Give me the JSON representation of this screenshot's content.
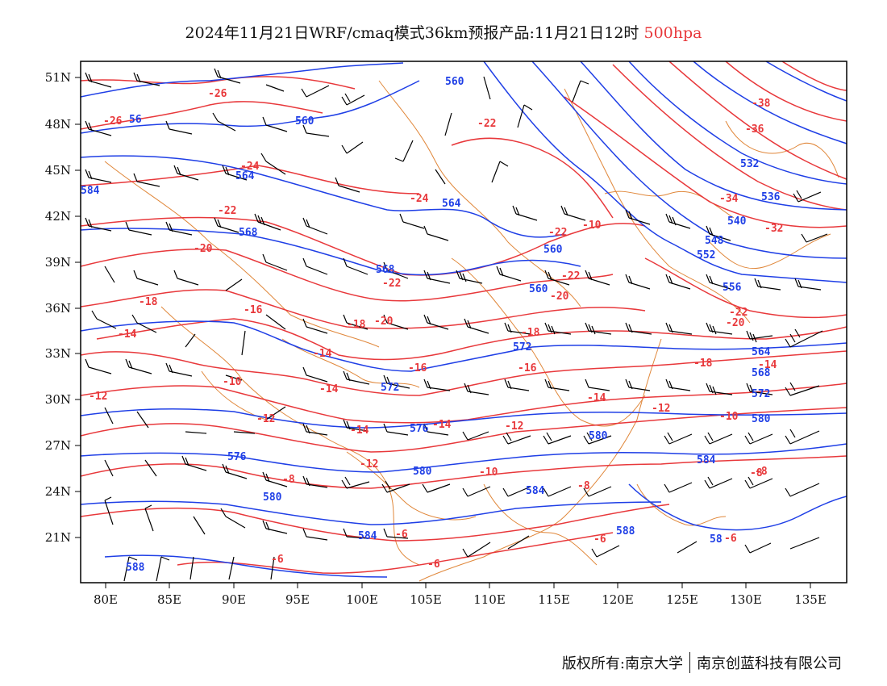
{
  "title": {
    "text": "2024年11月21日WRF/cmaq模式36km预报产品:11月21日12时",
    "level": "500hpa",
    "level_color": "#e8383b"
  },
  "colors": {
    "temperature_contour": "#e8383b",
    "height_contour": "#1f3fe6",
    "coastline_border": "#e0873a",
    "wind_barb": "#000000"
  },
  "axes": {
    "lat_labels": [
      "51N",
      "48N",
      "45N",
      "42N",
      "39N",
      "36N",
      "33N",
      "30N",
      "27N",
      "24N",
      "21N"
    ],
    "lon_labels": [
      "80E",
      "85E",
      "90E",
      "95E",
      "100E",
      "105E",
      "110E",
      "115E",
      "120E",
      "125E",
      "130E",
      "135E"
    ]
  },
  "contour_labels": {
    "height": [
      "560",
      "560",
      "56",
      "564",
      "564",
      "568",
      "568",
      "560",
      "572",
      "572",
      "576",
      "580",
      "580",
      "580",
      "584",
      "584",
      "584",
      "588",
      "588",
      "58",
      "532",
      "536",
      "540",
      "548",
      "552",
      "556",
      "560",
      "564",
      "568",
      "572",
      "576",
      "580",
      "584"
    ],
    "temperature": [
      "-26",
      "-26",
      "-24",
      "-24",
      "-22",
      "-22",
      "-22",
      "-22",
      "-22",
      "-20",
      "-20",
      "-20",
      "-18",
      "-18",
      "-18",
      "-16",
      "-16",
      "-16",
      "-14",
      "-14",
      "-14",
      "-14",
      "-14",
      "-14",
      "-12",
      "-12",
      "-12",
      "-12",
      "-10",
      "-10",
      "-10",
      "-8",
      "-8",
      "-8",
      "-6",
      "-6",
      "-6",
      "-6",
      "-38",
      "-36",
      "-34",
      "-32",
      "-22",
      "-20",
      "-18",
      "-14",
      "-12",
      "-10",
      "-8",
      "-6"
    ]
  },
  "footer": {
    "owner": "版权所有:南京大学",
    "company": "南京创蓝科技有限公司"
  }
}
